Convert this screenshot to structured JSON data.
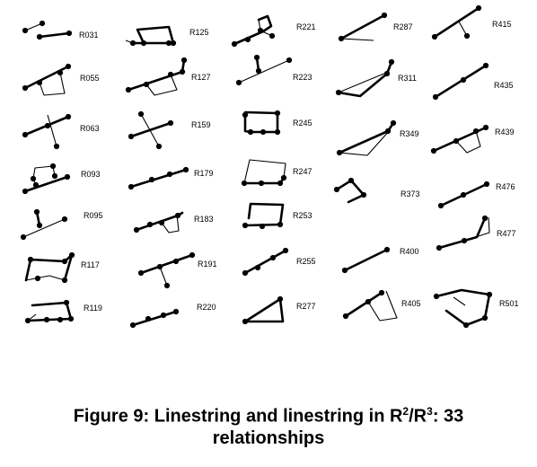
{
  "figure": {
    "labels": [
      "R031",
      "R125",
      "R221",
      "R287",
      "R415",
      "R055",
      "R127",
      "R223",
      "R311",
      "R435",
      "R063",
      "R159",
      "R245",
      "R349",
      "R439",
      "R093",
      "R179",
      "R247",
      "R373",
      "R476",
      "R095",
      "R183",
      "R253",
      "R400",
      "R477",
      "R117",
      "R191",
      "R255",
      "R405",
      "R501",
      "R119",
      "R220",
      "R277"
    ]
  },
  "caption": {
    "line1_prefix": "Figure 9: Linestring  and linestring  in ",
    "space_symbol_a": "R",
    "exp_a": "2",
    "slash": "/",
    "space_symbol_b": "R",
    "exp_b": "3",
    "line1_suffix": ": 33",
    "line2": "relationships"
  }
}
